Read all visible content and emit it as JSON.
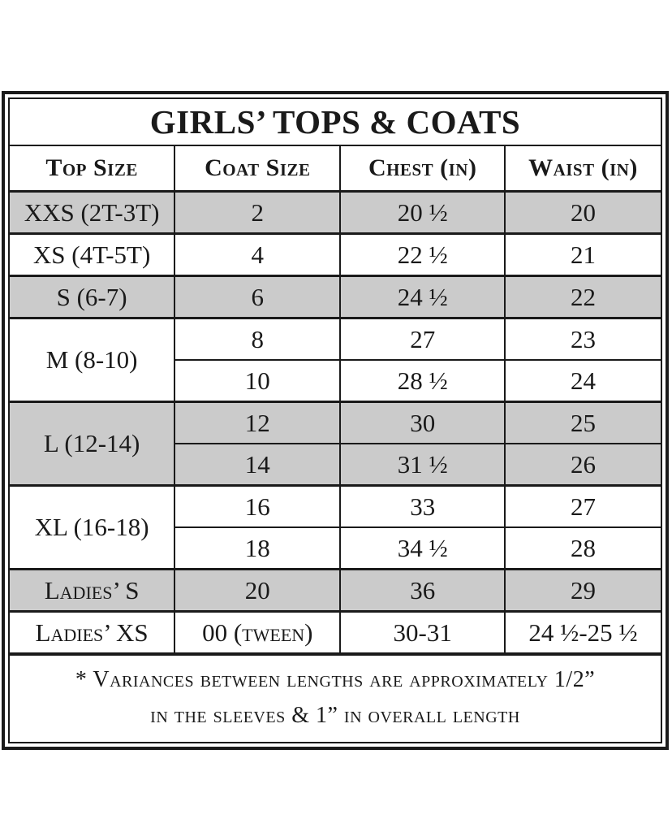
{
  "table": {
    "title": "GIRLS’ TOPS & COATS",
    "columns": [
      "Top Size",
      "Coat Size",
      "Chest (in)",
      "Waist (in)"
    ],
    "groups": [
      {
        "top_size": "XXS (2T-3T)",
        "shaded": true,
        "subrows": [
          {
            "coat": "2",
            "chest": "20 ½",
            "waist": "20"
          }
        ]
      },
      {
        "top_size": "XS (4T-5T)",
        "shaded": false,
        "subrows": [
          {
            "coat": "4",
            "chest": "22 ½",
            "waist": "21"
          }
        ]
      },
      {
        "top_size": "S (6-7)",
        "shaded": true,
        "subrows": [
          {
            "coat": "6",
            "chest": "24 ½",
            "waist": "22"
          }
        ]
      },
      {
        "top_size": "M (8-10)",
        "shaded": false,
        "subrows": [
          {
            "coat": "8",
            "chest": "27",
            "waist": "23"
          },
          {
            "coat": "10",
            "chest": "28 ½",
            "waist": "24"
          }
        ]
      },
      {
        "top_size": "L (12-14)",
        "shaded": true,
        "subrows": [
          {
            "coat": "12",
            "chest": "30",
            "waist": "25"
          },
          {
            "coat": "14",
            "chest": "31 ½",
            "waist": "26"
          }
        ]
      },
      {
        "top_size": "XL (16-18)",
        "shaded": false,
        "subrows": [
          {
            "coat": "16",
            "chest": "33",
            "waist": "27"
          },
          {
            "coat": "18",
            "chest": "34 ½",
            "waist": "28"
          }
        ]
      },
      {
        "top_size": "Ladies’ S",
        "shaded": true,
        "subrows": [
          {
            "coat": "20",
            "chest": "36",
            "waist": "29"
          }
        ]
      },
      {
        "top_size": "Ladies’ XS",
        "shaded": false,
        "subrows": [
          {
            "coat": "00 (tween)",
            "chest": "30-31",
            "waist": "24 ½-25 ½"
          }
        ]
      }
    ],
    "footnote": {
      "line1": "* Variances between lengths are approximately 1/2”",
      "line2": "in the sleeves & 1” in overall length"
    }
  },
  "flat_rows": [
    [
      "XXS (2T-3T)",
      "2",
      "20 ½",
      "20"
    ],
    [
      "XS (4T-5T)",
      "4",
      "22 ½",
      "21"
    ],
    [
      "S (6-7)",
      "6",
      "24 ½",
      "22"
    ],
    [
      "M (8-10)",
      "8",
      "27",
      "23"
    ],
    [
      "M (8-10)",
      "10",
      "28 ½",
      "24"
    ],
    [
      "L (12-14)",
      "12",
      "30",
      "25"
    ],
    [
      "L (12-14)",
      "14",
      "31 ½",
      "26"
    ],
    [
      "XL (16-18)",
      "16",
      "33",
      "27"
    ],
    [
      "XL (16-18)",
      "18",
      "34 ½",
      "28"
    ],
    [
      "Ladies’ S",
      "20",
      "36",
      "29"
    ],
    [
      "Ladies’ XS",
      "00 (tween)",
      "30-31",
      "24 ½-25 ½"
    ]
  ],
  "colors": {
    "shaded_row": "#cbcbcb",
    "border": "#1a1a1a",
    "background": "#ffffff"
  }
}
